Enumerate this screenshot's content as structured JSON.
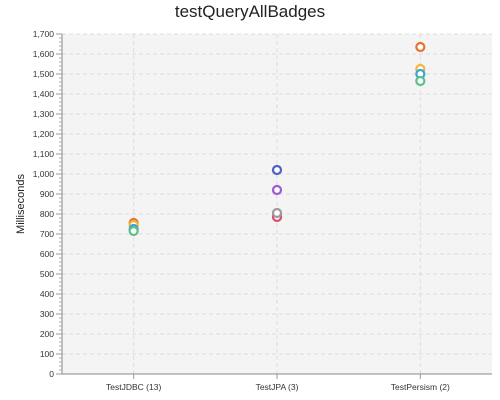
{
  "chart_data": {
    "type": "scatter",
    "title": "testQueryAllBadges",
    "xlabel": "",
    "ylabel": "Milliseconds",
    "categories": [
      "TestJDBC (13)",
      "TestJPA (3)",
      "TestPersism (2)"
    ],
    "ylim": [
      0,
      1700
    ],
    "y_ticks": [
      0,
      100,
      200,
      300,
      400,
      500,
      600,
      700,
      800,
      900,
      1000,
      1100,
      1200,
      1300,
      1400,
      1500,
      1600,
      1700
    ],
    "y_tick_labels": [
      "0",
      "100",
      "200",
      "300",
      "400",
      "500",
      "600",
      "700",
      "800",
      "900",
      "1,000",
      "1,100",
      "1,200",
      "1,300",
      "1,400",
      "1,500",
      "1,600",
      "1,700"
    ],
    "grid": true,
    "marker": "hollow-circle",
    "series": [
      {
        "color": "#e8732e",
        "values": [
          755,
          790,
          1635
        ]
      },
      {
        "color": "#f0b63c",
        "values": [
          745,
          null,
          1525
        ]
      },
      {
        "color": "#a05ad0",
        "values": [
          null,
          920,
          null
        ]
      },
      {
        "color": "#5060c8",
        "values": [
          null,
          1020,
          null
        ]
      },
      {
        "color": "#e04a6e",
        "values": [
          null,
          785,
          null
        ]
      },
      {
        "color": "#9a9a9a",
        "values": [
          null,
          805,
          null
        ]
      },
      {
        "color": "#3aa4d8",
        "values": [
          725,
          null,
          1500
        ]
      },
      {
        "color": "#5cbf8a",
        "values": [
          715,
          null,
          1465
        ]
      }
    ]
  }
}
